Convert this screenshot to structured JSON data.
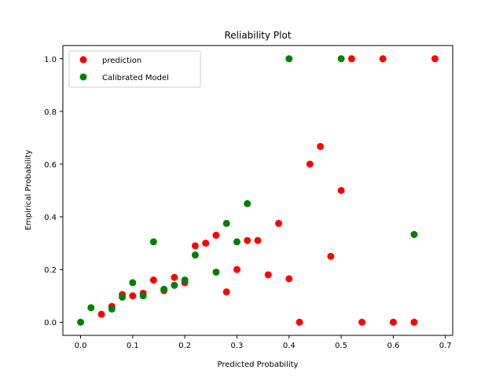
{
  "chart_data": {
    "type": "scatter",
    "title": "Reliability Plot",
    "xlabel": "Predicted Probability",
    "ylabel": "Empirical Probability",
    "xlim": [
      -0.034,
      0.714
    ],
    "ylim": [
      -0.05,
      1.05
    ],
    "xticks": [
      0.0,
      0.1,
      0.2,
      0.3,
      0.4,
      0.5,
      0.6,
      0.7
    ],
    "xtick_labels": [
      "0.0",
      "0.1",
      "0.2",
      "0.3",
      "0.4",
      "0.5",
      "0.6",
      "0.7"
    ],
    "yticks": [
      0.0,
      0.2,
      0.4,
      0.6,
      0.8,
      1.0
    ],
    "ytick_labels": [
      "0.0",
      "0.2",
      "0.4",
      "0.6",
      "0.8",
      "1.0"
    ],
    "grid": false,
    "legend_position": "top-left",
    "series": [
      {
        "name": "prediction",
        "color": "#ff0000",
        "points": [
          [
            0.04,
            0.03
          ],
          [
            0.06,
            0.06
          ],
          [
            0.08,
            0.105
          ],
          [
            0.1,
            0.1
          ],
          [
            0.12,
            0.11
          ],
          [
            0.14,
            0.16
          ],
          [
            0.16,
            0.12
          ],
          [
            0.18,
            0.17
          ],
          [
            0.2,
            0.15
          ],
          [
            0.22,
            0.29
          ],
          [
            0.24,
            0.3
          ],
          [
            0.26,
            0.33
          ],
          [
            0.28,
            0.115
          ],
          [
            0.3,
            0.2
          ],
          [
            0.32,
            0.31
          ],
          [
            0.34,
            0.31
          ],
          [
            0.36,
            0.18
          ],
          [
            0.38,
            0.375
          ],
          [
            0.4,
            0.165
          ],
          [
            0.42,
            0.0
          ],
          [
            0.44,
            0.6
          ],
          [
            0.46,
            0.667
          ],
          [
            0.48,
            0.25
          ],
          [
            0.5,
            0.5
          ],
          [
            0.52,
            1.0
          ],
          [
            0.54,
            0.0
          ],
          [
            0.58,
            1.0
          ],
          [
            0.6,
            0.0
          ],
          [
            0.64,
            0.0
          ],
          [
            0.68,
            1.0
          ]
        ]
      },
      {
        "name": "Calibrated Model",
        "color": "#008000",
        "points": [
          [
            0.0,
            0.0
          ],
          [
            0.02,
            0.055
          ],
          [
            0.06,
            0.05
          ],
          [
            0.08,
            0.095
          ],
          [
            0.1,
            0.15
          ],
          [
            0.12,
            0.1
          ],
          [
            0.14,
            0.305
          ],
          [
            0.16,
            0.125
          ],
          [
            0.18,
            0.14
          ],
          [
            0.2,
            0.16
          ],
          [
            0.22,
            0.255
          ],
          [
            0.26,
            0.19
          ],
          [
            0.28,
            0.375
          ],
          [
            0.3,
            0.305
          ],
          [
            0.32,
            0.45
          ],
          [
            0.4,
            1.0
          ],
          [
            0.5,
            1.0
          ],
          [
            0.64,
            0.333
          ]
        ]
      }
    ]
  }
}
